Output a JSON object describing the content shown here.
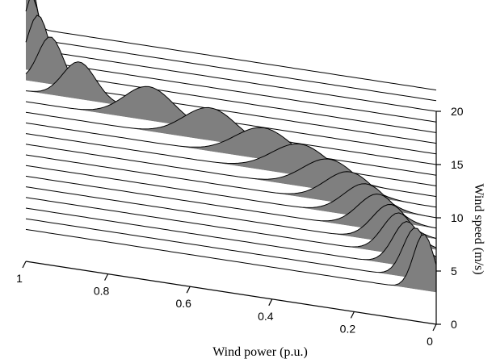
{
  "chart_data": {
    "type": "area",
    "title": "",
    "xlabel": "Wind power (p.u.)",
    "ylabel": "Wind speed (m/s)",
    "x_ticks": [
      "1",
      "0.8",
      "0.6",
      "0.4",
      "0.2",
      "0"
    ],
    "y_ticks": [
      "0",
      "5",
      "10",
      "15",
      "20"
    ],
    "xlim": [
      0,
      1
    ],
    "ylim": [
      0,
      20
    ],
    "fill_color": "#7f7f7f",
    "slices": [
      {
        "speed": 3,
        "peaks": [
          {
            "x": 0.03,
            "w": 0.025,
            "h": 5.0
          }
        ]
      },
      {
        "speed": 4,
        "peaks": [
          {
            "x": 0.05,
            "w": 0.03,
            "h": 4.5
          }
        ]
      },
      {
        "speed": 5,
        "peaks": [
          {
            "x": 0.07,
            "w": 0.035,
            "h": 4.0
          }
        ]
      },
      {
        "speed": 6,
        "peaks": [
          {
            "x": 0.09,
            "w": 0.04,
            "h": 3.7
          }
        ]
      },
      {
        "speed": 7,
        "peaks": [
          {
            "x": 0.11,
            "w": 0.045,
            "h": 3.4
          }
        ]
      },
      {
        "speed": 8,
        "peaks": [
          {
            "x": 0.14,
            "w": 0.05,
            "h": 3.2
          }
        ]
      },
      {
        "speed": 9,
        "peaks": [
          {
            "x": 0.17,
            "w": 0.055,
            "h": 3.0
          }
        ]
      },
      {
        "speed": 10,
        "peaks": [
          {
            "x": 0.21,
            "w": 0.06,
            "h": 2.9
          }
        ]
      },
      {
        "speed": 11,
        "peaks": [
          {
            "x": 0.26,
            "w": 0.065,
            "h": 2.8
          }
        ]
      },
      {
        "speed": 12,
        "peaks": [
          {
            "x": 0.33,
            "w": 0.07,
            "h": 2.8
          }
        ]
      },
      {
        "speed": 13,
        "peaks": [
          {
            "x": 0.42,
            "w": 0.07,
            "h": 2.8
          }
        ]
      },
      {
        "speed": 14,
        "peaks": [
          {
            "x": 0.55,
            "w": 0.065,
            "h": 2.9
          }
        ]
      },
      {
        "speed": 15,
        "peaks": [
          {
            "x": 0.7,
            "w": 0.06,
            "h": 3.0
          }
        ]
      },
      {
        "speed": 16,
        "peaks": [
          {
            "x": 0.87,
            "w": 0.04,
            "h": 3.3
          }
        ]
      },
      {
        "speed": 17,
        "peaks": [
          {
            "x": 0.94,
            "w": 0.03,
            "h": 4.2
          }
        ]
      },
      {
        "speed": 18,
        "peaks": [
          {
            "x": 0.97,
            "w": 0.025,
            "h": 5.0
          }
        ]
      },
      {
        "speed": 19,
        "peaks": [
          {
            "x": 0.985,
            "w": 0.02,
            "h": 5.6
          }
        ]
      },
      {
        "speed": 20,
        "peaks": [
          {
            "x": 0.99,
            "w": 0.018,
            "h": 6.0
          }
        ]
      },
      {
        "speed": 21,
        "peaks": [
          {
            "x": 0.995,
            "w": 0.016,
            "h": 6.4
          }
        ]
      },
      {
        "speed": 22,
        "peaks": [
          {
            "x": 0.997,
            "w": 0.015,
            "h": 6.6
          }
        ]
      }
    ]
  }
}
